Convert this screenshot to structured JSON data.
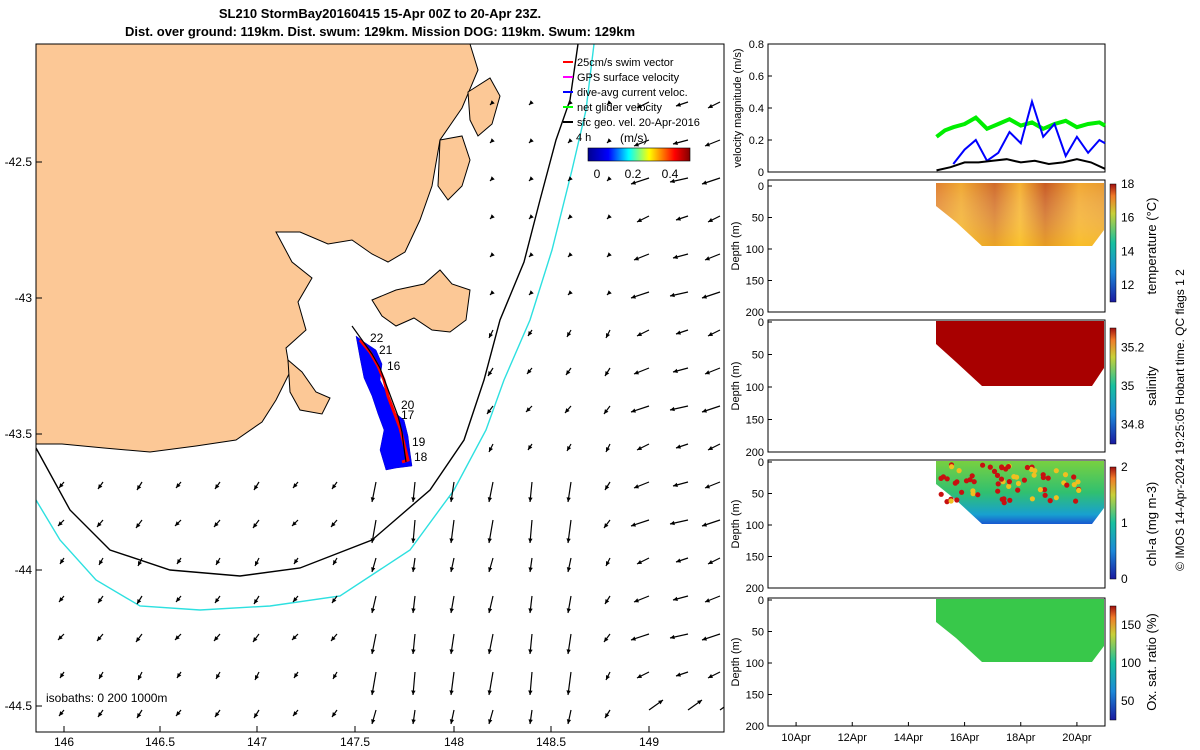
{
  "header": {
    "title_line1": "SL210 StormBay20160415 15-Apr 00Z to 20-Apr 23Z.",
    "title_line2": "Dist. over ground: 119km. Dist. swum: 129km. Mission DOG: 119km. Swum: 129km"
  },
  "map": {
    "xticks": [
      "146",
      "146.5",
      "147",
      "147.5",
      "148",
      "148.5",
      "149"
    ],
    "yticks": [
      "-42.5",
      "-43",
      "-43.5",
      "-44",
      "-44.5"
    ],
    "legend": [
      {
        "label": "25cm/s swim vector",
        "color": "#ff0000"
      },
      {
        "label": "GPS surface velocity",
        "color": "#ff00ff"
      },
      {
        "label": "dive-avg current veloc.",
        "color": "#0000ff"
      },
      {
        "label": "net glider velocity",
        "color": "#00ff00"
      },
      {
        "label": "sfc geo. vel. 20-Apr-2016",
        "color": "#000000"
      }
    ],
    "colorbar_label": "(m/s)",
    "colorbar_ticks": [
      "0",
      "0.2",
      "0.4"
    ],
    "isobaths_label": "isobaths: 0   200  1000m",
    "time_label": "4 h",
    "day_labels": [
      "22",
      "21",
      "16",
      "20",
      "17",
      "19",
      "18"
    ]
  },
  "chart_data": [
    {
      "type": "line",
      "name": "velocity-panel",
      "ylabel": "velocity magnitude (m/s)",
      "yticks": [
        "0",
        "0.2",
        "0.4",
        "0.6",
        "0.8"
      ],
      "ylim": [
        0,
        0.8
      ],
      "xlim_days": [
        "9-Apr",
        "21-Apr"
      ],
      "series": [
        {
          "color": "#00ee00",
          "x": [
            15.0,
            15.3,
            15.6,
            16.0,
            16.4,
            16.8,
            17.2,
            17.6,
            18.0,
            18.4,
            18.8,
            19.2,
            19.6,
            20.0,
            20.4,
            20.8,
            21.0
          ],
          "values": [
            0.22,
            0.26,
            0.28,
            0.3,
            0.34,
            0.27,
            0.3,
            0.33,
            0.29,
            0.31,
            0.27,
            0.3,
            0.32,
            0.28,
            0.3,
            0.31,
            0.29
          ]
        },
        {
          "color": "#0000ff",
          "x": [
            15.6,
            16.0,
            16.4,
            16.8,
            17.2,
            17.6,
            18.0,
            18.4,
            18.8,
            19.2,
            19.6,
            20.0,
            20.4,
            20.8,
            21.0
          ],
          "values": [
            0.05,
            0.14,
            0.2,
            0.07,
            0.12,
            0.25,
            0.18,
            0.44,
            0.22,
            0.3,
            0.1,
            0.22,
            0.12,
            0.2,
            0.18
          ]
        },
        {
          "color": "#000000",
          "x": [
            15.0,
            15.5,
            16.0,
            16.5,
            17.0,
            17.5,
            18.0,
            18.5,
            19.0,
            19.5,
            20.0,
            20.5,
            21.0
          ],
          "values": [
            0.01,
            0.03,
            0.06,
            0.06,
            0.07,
            0.08,
            0.06,
            0.07,
            0.05,
            0.06,
            0.08,
            0.06,
            0.02
          ]
        }
      ]
    },
    {
      "type": "heatmap",
      "name": "temperature-panel",
      "ylabel": "Depth (m)",
      "yticks": [
        "0",
        "50",
        "100",
        "150",
        "200"
      ],
      "colorbar_label": "temperature (°C)",
      "colorbar_ticks": [
        "12",
        "14",
        "16",
        "18"
      ],
      "clim": [
        11,
        18
      ]
    },
    {
      "type": "heatmap",
      "name": "salinity-panel",
      "ylabel": "Depth (m)",
      "yticks": [
        "0",
        "50",
        "100",
        "150",
        "200"
      ],
      "colorbar_label": "salinity",
      "colorbar_ticks": [
        "34.8",
        "35",
        "35.2"
      ],
      "clim": [
        34.7,
        35.3
      ]
    },
    {
      "type": "heatmap",
      "name": "chla-panel",
      "ylabel": "Depth (m)",
      "yticks": [
        "0",
        "50",
        "100",
        "150",
        "200"
      ],
      "colorbar_label": "chl-a (mg m-3)",
      "colorbar_ticks": [
        "0",
        "1",
        "2"
      ],
      "clim": [
        0,
        2
      ]
    },
    {
      "type": "heatmap",
      "name": "oxygen-panel",
      "ylabel": "Depth (m)",
      "yticks": [
        "0",
        "50",
        "100",
        "150",
        "200"
      ],
      "xticks": [
        "10Apr",
        "12Apr",
        "14Apr",
        "16Apr",
        "18Apr",
        "20Apr"
      ],
      "colorbar_label": "Ox. sat. ratio (%)",
      "colorbar_ticks": [
        "50",
        "100",
        "150"
      ],
      "clim": [
        25,
        175
      ]
    }
  ],
  "footer": {
    "credit": "© IMOS 14-Apr-2024 19:25:05 Hobart time. QC flags 1  2"
  },
  "colors": {
    "land": "#fcc896",
    "isobath_200": "#000000",
    "isobath_1000": "#2de0e0",
    "glider_track": "#0000ff"
  }
}
